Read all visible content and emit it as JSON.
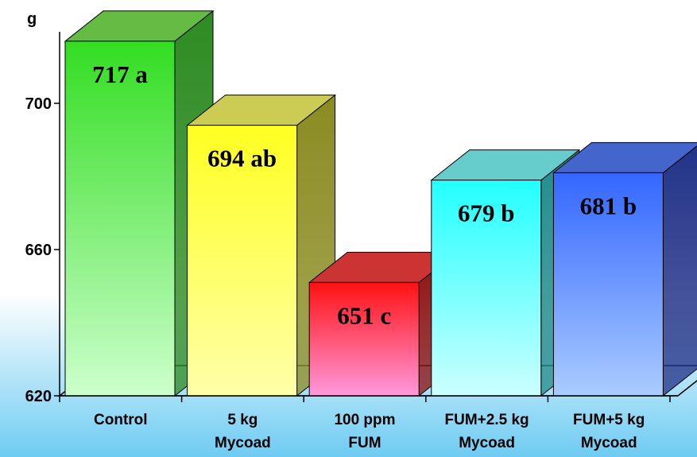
{
  "chart_data": {
    "type": "bar",
    "ylabel": "g",
    "ylim": [
      620,
      720
    ],
    "yticks": [
      620,
      660,
      700
    ],
    "categories": [
      [
        "Control"
      ],
      [
        "5 kg",
        "Mycoad"
      ],
      [
        "100 ppm",
        "FUM"
      ],
      [
        "FUM+2.5 kg",
        "Mycoad"
      ],
      [
        "FUM+5 kg",
        "Mycoad"
      ]
    ],
    "values": [
      717,
      694,
      651,
      679,
      681
    ],
    "labels": [
      "717 a",
      "694 ab",
      "651 c",
      "679 b",
      "681 b"
    ],
    "colors": [
      {
        "top": "#33dd22",
        "bottom": "#ccffcc",
        "side": "#2e8b22",
        "cap": "#66bb44"
      },
      {
        "top": "#ffff22",
        "bottom": "#ffffaa",
        "side": "#8b8b22",
        "cap": "#cccc55"
      },
      {
        "top": "#ff1111",
        "bottom": "#ff99dd",
        "side": "#8b1111",
        "cap": "#cc3333"
      },
      {
        "top": "#22ffff",
        "bottom": "#ccffff",
        "side": "#228b8b",
        "cap": "#66cccc"
      },
      {
        "top": "#3366ff",
        "bottom": "#aaccff",
        "side": "#223388",
        "cap": "#4466cc"
      }
    ],
    "three_d": true,
    "grid": false,
    "legend": "none"
  }
}
